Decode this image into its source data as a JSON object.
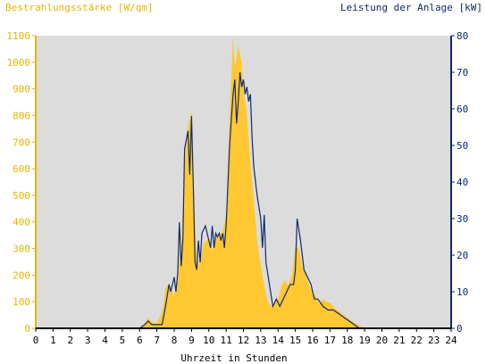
{
  "chart_data": {
    "type": "area",
    "title": "",
    "left_axis_label": "Bestrahlungsstärke [W/qm]",
    "right_axis_label": "Leistung der Anlage [kW]",
    "xlabel": "Uhrzeit in Stunden",
    "xlim": [
      0,
      24
    ],
    "y_left_lim": [
      0,
      1100
    ],
    "y_right_lim": [
      0,
      80
    ],
    "x_ticks": [
      "0",
      "1",
      "2",
      "3",
      "4",
      "5",
      "6",
      "7",
      "8",
      "9",
      "10",
      "11",
      "12",
      "13",
      "14",
      "15",
      "16",
      "17",
      "18",
      "19",
      "20",
      "21",
      "22",
      "23",
      "24"
    ],
    "y_left_ticks": [
      "0",
      "100",
      "200",
      "300",
      "400",
      "500",
      "600",
      "700",
      "800",
      "900",
      "1000",
      "1100"
    ],
    "y_right_ticks": [
      "0",
      "10",
      "20",
      "30",
      "40",
      "50",
      "60",
      "70",
      "80"
    ],
    "grid": false,
    "colors": {
      "irradiance": "#ffc830",
      "power": "#102a6e",
      "axis_left": "#e8b400",
      "axis_right": "#0b2a6e",
      "plot_bg": "#dcdcdc"
    },
    "series": [
      {
        "name": "Bestrahlungsstärke [W/qm]",
        "axis": "left",
        "style": "area",
        "x": [
          0,
          6.0,
          6.3,
          6.5,
          6.6,
          6.8,
          7.0,
          7.3,
          7.5,
          7.7,
          8.0,
          8.2,
          8.4,
          8.6,
          8.8,
          9.0,
          9.1,
          9.3,
          9.5,
          9.7,
          10.0,
          10.2,
          10.4,
          10.6,
          10.8,
          11.0,
          11.2,
          11.4,
          11.5,
          11.7,
          11.9,
          12.0,
          12.2,
          12.4,
          12.6,
          12.8,
          13.0,
          13.2,
          13.4,
          13.6,
          13.8,
          14.0,
          14.2,
          14.4,
          14.6,
          14.8,
          15.0,
          15.2,
          15.4,
          15.6,
          15.8,
          16.0,
          16.2,
          16.4,
          16.6,
          16.8,
          17.0,
          17.3,
          17.6,
          18.0,
          18.3,
          18.6,
          18.9,
          19.1,
          24
        ],
        "y": [
          0,
          0,
          20,
          40,
          30,
          20,
          20,
          60,
          150,
          170,
          120,
          200,
          320,
          600,
          760,
          820,
          550,
          260,
          240,
          320,
          340,
          290,
          360,
          340,
          370,
          420,
          800,
          1100,
          980,
          1060,
          1000,
          900,
          800,
          620,
          480,
          320,
          240,
          160,
          100,
          80,
          100,
          110,
          160,
          180,
          160,
          200,
          310,
          300,
          230,
          200,
          160,
          130,
          120,
          90,
          110,
          100,
          95,
          75,
          60,
          40,
          25,
          12,
          5,
          0,
          0
        ]
      },
      {
        "name": "Leistung der Anlage [kW]",
        "axis": "right",
        "style": "line",
        "x": [
          0,
          6.0,
          6.3,
          6.5,
          6.7,
          7.0,
          7.3,
          7.5,
          7.7,
          7.8,
          8.0,
          8.1,
          8.2,
          8.3,
          8.4,
          8.5,
          8.6,
          8.8,
          8.9,
          9.0,
          9.1,
          9.2,
          9.3,
          9.4,
          9.5,
          9.6,
          9.8,
          10.0,
          10.1,
          10.2,
          10.3,
          10.4,
          10.5,
          10.6,
          10.7,
          10.8,
          10.9,
          11.0,
          11.2,
          11.4,
          11.5,
          11.6,
          11.7,
          11.8,
          11.9,
          12.0,
          12.1,
          12.2,
          12.3,
          12.4,
          12.5,
          12.6,
          12.8,
          13.0,
          13.1,
          13.2,
          13.3,
          13.5,
          13.7,
          13.9,
          14.1,
          14.3,
          14.5,
          14.7,
          14.9,
          15.0,
          15.1,
          15.3,
          15.5,
          15.7,
          15.9,
          16.1,
          16.3,
          16.6,
          16.9,
          17.2,
          17.5,
          17.8,
          18.1,
          18.4,
          18.7,
          19.0,
          24
        ],
        "y": [
          0,
          0,
          1,
          2,
          1,
          1,
          1,
          6,
          12,
          10,
          14,
          10,
          15,
          29,
          17,
          24,
          49,
          54,
          42,
          58,
          40,
          18,
          16,
          24,
          18,
          26,
          28,
          24,
          22,
          28,
          22,
          26,
          25,
          26,
          24,
          26,
          22,
          28,
          50,
          64,
          68,
          56,
          62,
          70,
          66,
          68,
          64,
          66,
          62,
          64,
          52,
          44,
          36,
          30,
          22,
          31,
          18,
          12,
          6,
          8,
          6,
          8,
          10,
          12,
          12,
          16,
          30,
          24,
          16,
          14,
          12,
          8,
          8,
          6,
          5,
          5,
          4,
          3,
          2,
          1,
          0,
          0,
          0
        ]
      }
    ]
  }
}
